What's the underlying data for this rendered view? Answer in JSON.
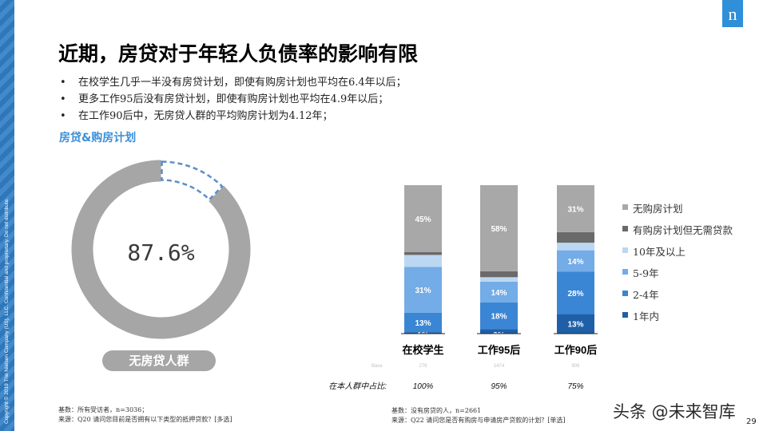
{
  "copyright": "Copyright © 2019 The Nielsen Company (US), LLC. Confidential and proprietary. Do not distribute.",
  "logo_letter": "n",
  "title": "近期，房贷对于年轻人负债率的影响有限",
  "bullets": [
    "在校学生几乎一半没有房贷计划，即使有购房计划也平均在6.4年以后；",
    "更多工作95后没有房贷计划，即使有购房计划也平均在4.9年以后；",
    "在工作90后中，无房贷人群的平均购房计划为4.12年；"
  ],
  "bullet_marker": "•",
  "section_title": "房贷&购房计划",
  "colors": {
    "accent": "#3a8fd8",
    "donut_gray": "#a6a6a6",
    "donut_dash": "#5b8fc9",
    "brand_blue": "#2f8fd9"
  },
  "chart_data": [
    {
      "type": "pie",
      "subtype": "donut",
      "slices": [
        {
          "label": "无房贷人群",
          "value": 87.6
        },
        {
          "label": "",
          "value": 12.4
        }
      ],
      "center_label": "87.6%",
      "category_label": "无房贷人群"
    },
    {
      "type": "bar",
      "stacked": true,
      "unit": "%",
      "categories": [
        "在校学生",
        "工作95后",
        "工作90后"
      ],
      "series": [
        {
          "name": "1年内",
          "color": "#1f5fa8",
          "values": [
            1,
            3,
            13
          ],
          "labels": [
            "1%",
            "3%",
            "13%"
          ]
        },
        {
          "name": "2-4年",
          "color": "#3a86d4",
          "values": [
            13,
            18,
            28
          ],
          "labels": [
            "13%",
            "18%",
            "28%"
          ]
        },
        {
          "name": "5-9年",
          "color": "#73ace6",
          "values": [
            31,
            14,
            14
          ],
          "labels": [
            "31%",
            "14%",
            "14%"
          ]
        },
        {
          "name": "10年及以上",
          "color": "#bcd7f1",
          "values": [
            8,
            3,
            5
          ],
          "labels": [
            "",
            "",
            ""
          ]
        },
        {
          "name": "有购房计划但无需贷款",
          "color": "#6a6a6a",
          "values": [
            2,
            4,
            7
          ],
          "labels": [
            "",
            "",
            ""
          ]
        },
        {
          "name": "无购房计划",
          "color": "#a8a8a8",
          "values": [
            45,
            58,
            31
          ],
          "labels": [
            "45%",
            "58%",
            "31%"
          ]
        }
      ],
      "base_label": "Base",
      "bases": [
        "278",
        "1474",
        "909"
      ],
      "share_row_label": "在本人群中占比:",
      "shares": [
        "100%",
        "95%",
        "75%"
      ],
      "legend_order": [
        "无购房计划",
        "有购房计划但无需贷款",
        "10年及以上",
        "5-9年",
        "2-4年",
        "1年内"
      ]
    }
  ],
  "footnote_left": {
    "base": "基数：所有受访者，n=3036；",
    "source": "来源：Q20 请问您目前是否拥有以下类型的抵押贷款？[多选]"
  },
  "footnote_right": {
    "base": "基数：没有房贷的人，n=2661",
    "source": "来源：Q22 请问您是否有购房与申请房产贷款的计划？[单选]"
  },
  "watermark": "头条 @未来智库",
  "page_number": "29"
}
